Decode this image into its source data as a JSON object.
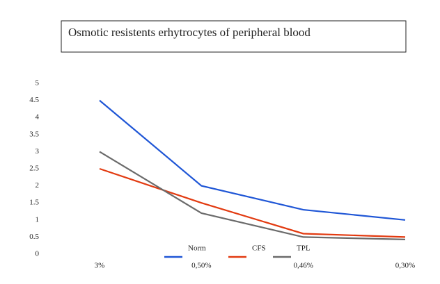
{
  "chart_data": {
    "type": "line",
    "title": "Osmotic resistents erhytrocytes of peripheral blood",
    "categories": [
      "3%",
      "0,50%",
      "0,46%",
      "0,30%"
    ],
    "series": [
      {
        "name": "Norm",
        "color": "#1f56d6",
        "values": [
          4.5,
          2,
          1.3,
          1
        ]
      },
      {
        "name": "CFS",
        "color": "#e23a10",
        "values": [
          2.5,
          1.5,
          0.6,
          0.5
        ]
      },
      {
        "name": "TPL",
        "color": "#6b6b6b",
        "values": [
          3,
          1.2,
          0.5,
          0.43
        ]
      }
    ],
    "ylim": [
      0,
      5
    ],
    "yticks": [
      0,
      0.5,
      1,
      1.5,
      2,
      2.5,
      3,
      3.5,
      4,
      4.5,
      5
    ],
    "grid": false
  }
}
